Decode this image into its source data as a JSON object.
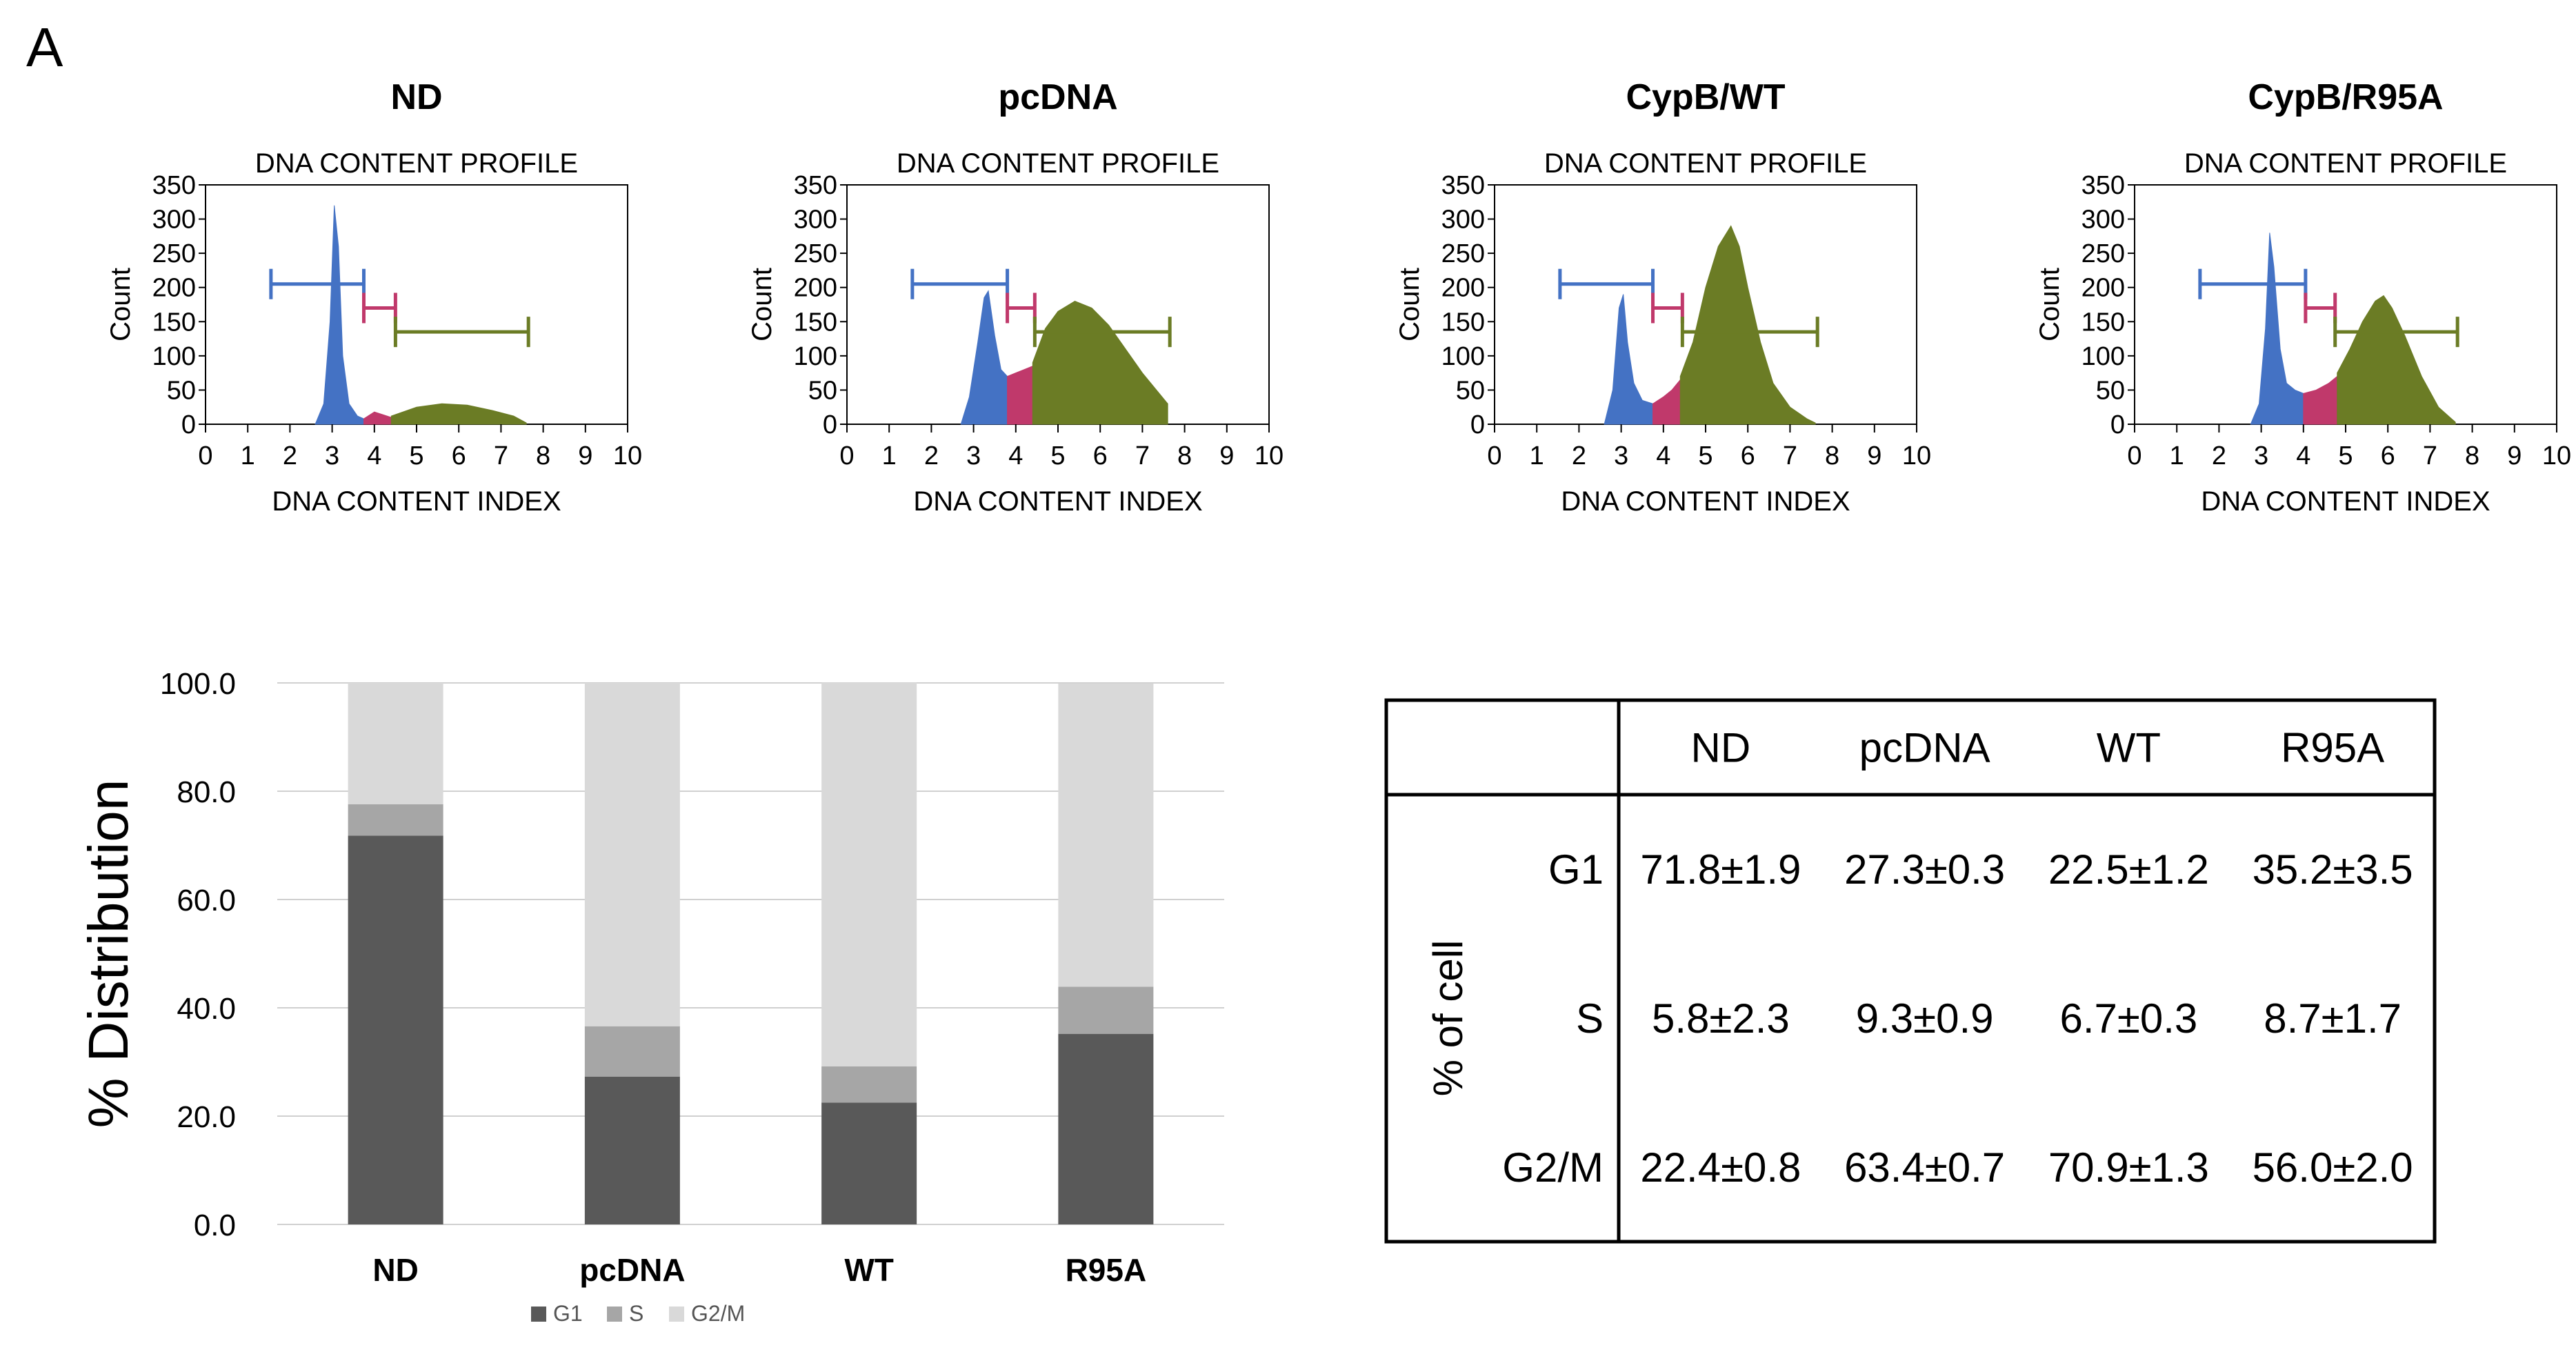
{
  "panel_label": "A",
  "chart_data": [
    {
      "type": "area",
      "title": "ND",
      "subtitle": "DNA CONTENT PROFILE",
      "xlabel": "DNA CONTENT INDEX",
      "ylabel": "Count",
      "xlim": [
        0,
        10
      ],
      "ylim": [
        0,
        350
      ],
      "xticks": [
        0,
        1,
        2,
        3,
        4,
        5,
        6,
        7,
        8,
        9,
        10
      ],
      "yticks": [
        0,
        50,
        100,
        150,
        200,
        250,
        300,
        350
      ],
      "series": [
        {
          "phase": "G1",
          "color": "#4472c4",
          "x": [
            2.6,
            2.8,
            2.95,
            3.05,
            3.15,
            3.25,
            3.4,
            3.6,
            3.75
          ],
          "y": [
            0,
            30,
            150,
            320,
            260,
            100,
            30,
            12,
            8
          ]
        },
        {
          "phase": "S",
          "color": "#c0396b",
          "x": [
            3.75,
            4.0,
            4.2,
            4.4
          ],
          "y": [
            8,
            18,
            14,
            10
          ]
        },
        {
          "phase": "G2/M",
          "color": "#6b7c25",
          "x": [
            4.4,
            5.0,
            5.6,
            6.2,
            6.8,
            7.3,
            7.6
          ],
          "y": [
            12,
            25,
            30,
            28,
            20,
            12,
            2
          ]
        }
      ],
      "gates": [
        {
          "phase": "G1",
          "color": "#4472c4",
          "start": 1.55,
          "end": 3.75,
          "level": 205
        },
        {
          "phase": "S",
          "color": "#c0396b",
          "start": 3.75,
          "end": 4.5,
          "level": 170
        },
        {
          "phase": "G2/M",
          "color": "#6b7c25",
          "start": 4.5,
          "end": 7.65,
          "level": 135
        }
      ]
    },
    {
      "type": "area",
      "title": "pcDNA",
      "subtitle": "DNA CONTENT PROFILE",
      "xlabel": "DNA CONTENT INDEX",
      "ylabel": "Count",
      "xlim": [
        0,
        10
      ],
      "ylim": [
        0,
        350
      ],
      "xticks": [
        0,
        1,
        2,
        3,
        4,
        5,
        6,
        7,
        8,
        9,
        10
      ],
      "yticks": [
        0,
        50,
        100,
        150,
        200,
        250,
        300,
        350
      ],
      "series": [
        {
          "phase": "G1",
          "color": "#4472c4",
          "x": [
            2.7,
            2.9,
            3.1,
            3.25,
            3.35,
            3.5,
            3.65,
            3.8
          ],
          "y": [
            0,
            40,
            120,
            185,
            195,
            130,
            80,
            70
          ]
        },
        {
          "phase": "S",
          "color": "#c0396b",
          "x": [
            3.8,
            4.0,
            4.2,
            4.4
          ],
          "y": [
            70,
            75,
            80,
            85
          ]
        },
        {
          "phase": "G2/M",
          "color": "#6b7c25",
          "x": [
            4.4,
            4.7,
            5.0,
            5.4,
            5.8,
            6.2,
            6.6,
            7.0,
            7.4,
            7.6
          ],
          "y": [
            90,
            140,
            165,
            180,
            170,
            145,
            110,
            75,
            45,
            30
          ]
        }
      ],
      "gates": [
        {
          "phase": "G1",
          "color": "#4472c4",
          "start": 1.55,
          "end": 3.8,
          "level": 205
        },
        {
          "phase": "S",
          "color": "#c0396b",
          "start": 3.8,
          "end": 4.45,
          "level": 170
        },
        {
          "phase": "G2/M",
          "color": "#6b7c25",
          "start": 4.45,
          "end": 7.65,
          "level": 135
        }
      ]
    },
    {
      "type": "area",
      "title": "CypB/WT",
      "subtitle": "DNA CONTENT PROFILE",
      "xlabel": "DNA CONTENT INDEX",
      "ylabel": "Count",
      "xlim": [
        0,
        10
      ],
      "ylim": [
        0,
        350
      ],
      "xticks": [
        0,
        1,
        2,
        3,
        4,
        5,
        6,
        7,
        8,
        9,
        10
      ],
      "yticks": [
        0,
        50,
        100,
        150,
        200,
        250,
        300,
        350
      ],
      "series": [
        {
          "phase": "G1",
          "color": "#4472c4",
          "x": [
            2.6,
            2.8,
            2.95,
            3.05,
            3.15,
            3.3,
            3.5,
            3.75
          ],
          "y": [
            0,
            50,
            170,
            190,
            120,
            60,
            35,
            30
          ]
        },
        {
          "phase": "S",
          "color": "#c0396b",
          "x": [
            3.75,
            4.0,
            4.2,
            4.4
          ],
          "y": [
            30,
            40,
            50,
            65
          ]
        },
        {
          "phase": "G2/M",
          "color": "#6b7c25",
          "x": [
            4.4,
            4.7,
            5.0,
            5.3,
            5.6,
            5.8,
            6.0,
            6.3,
            6.6,
            7.0,
            7.4,
            7.6
          ],
          "y": [
            70,
            120,
            200,
            260,
            290,
            260,
            200,
            120,
            60,
            25,
            8,
            2
          ]
        }
      ],
      "gates": [
        {
          "phase": "G1",
          "color": "#4472c4",
          "start": 1.55,
          "end": 3.75,
          "level": 205
        },
        {
          "phase": "S",
          "color": "#c0396b",
          "start": 3.75,
          "end": 4.45,
          "level": 170
        },
        {
          "phase": "G2/M",
          "color": "#6b7c25",
          "start": 4.45,
          "end": 7.65,
          "level": 135
        }
      ]
    },
    {
      "type": "area",
      "title": "CypB/R95A",
      "subtitle": "DNA CONTENT PROFILE",
      "xlabel": "DNA CONTENT INDEX",
      "ylabel": "Count",
      "xlim": [
        0,
        10
      ],
      "ylim": [
        0,
        350
      ],
      "xticks": [
        0,
        1,
        2,
        3,
        4,
        5,
        6,
        7,
        8,
        9,
        10
      ],
      "yticks": [
        0,
        50,
        100,
        150,
        200,
        250,
        300,
        350
      ],
      "series": [
        {
          "phase": "G1",
          "color": "#4472c4",
          "x": [
            2.75,
            2.95,
            3.1,
            3.2,
            3.3,
            3.45,
            3.6,
            3.8,
            4.0
          ],
          "y": [
            0,
            30,
            140,
            280,
            230,
            110,
            60,
            50,
            45
          ]
        },
        {
          "phase": "S",
          "color": "#c0396b",
          "x": [
            4.0,
            4.3,
            4.6,
            4.8
          ],
          "y": [
            45,
            50,
            60,
            70
          ]
        },
        {
          "phase": "G2/M",
          "color": "#6b7c25",
          "x": [
            4.8,
            5.1,
            5.4,
            5.7,
            5.9,
            6.1,
            6.4,
            6.8,
            7.2,
            7.6
          ],
          "y": [
            75,
            110,
            150,
            180,
            188,
            170,
            130,
            70,
            25,
            3
          ]
        }
      ],
      "gates": [
        {
          "phase": "G1",
          "color": "#4472c4",
          "start": 1.55,
          "end": 4.05,
          "level": 205
        },
        {
          "phase": "S",
          "color": "#c0396b",
          "start": 4.05,
          "end": 4.75,
          "level": 170
        },
        {
          "phase": "G2/M",
          "color": "#6b7c25",
          "start": 4.75,
          "end": 7.65,
          "level": 135
        }
      ]
    },
    {
      "type": "bar",
      "stacked": true,
      "ylabel": "% Distribution",
      "categories": [
        "ND",
        "pcDNA",
        "WT",
        "R95A"
      ],
      "ylim": [
        0,
        100
      ],
      "yticks": [
        "0.0",
        "20.0",
        "40.0",
        "60.0",
        "80.0",
        "100.0"
      ],
      "grid": true,
      "legend_position": "bottom",
      "series": [
        {
          "name": "G1",
          "color": "#595959",
          "values": [
            71.8,
            27.3,
            22.5,
            35.2
          ]
        },
        {
          "name": "S",
          "color": "#a6a6a6",
          "values": [
            5.8,
            9.3,
            6.7,
            8.7
          ]
        },
        {
          "name": "G2/M",
          "color": "#d9d9d9",
          "values": [
            22.4,
            63.4,
            70.9,
            56.0
          ]
        }
      ]
    },
    {
      "type": "table",
      "columns": [
        "ND",
        "pcDNA",
        "WT",
        "R95A"
      ],
      "row_group_label": "% of cell",
      "rows": [
        {
          "label": "G1",
          "cells": [
            "71.8±1.9",
            "27.3±0.3",
            "22.5±1.2",
            "35.2±3.5"
          ]
        },
        {
          "label": "S",
          "cells": [
            "5.8±2.3",
            "9.3±0.9",
            "6.7±0.3",
            "8.7±1.7"
          ]
        },
        {
          "label": "G2/M",
          "cells": [
            "22.4±0.8",
            "63.4±0.7",
            "70.9±1.3",
            "56.0±2.0"
          ]
        }
      ]
    }
  ]
}
